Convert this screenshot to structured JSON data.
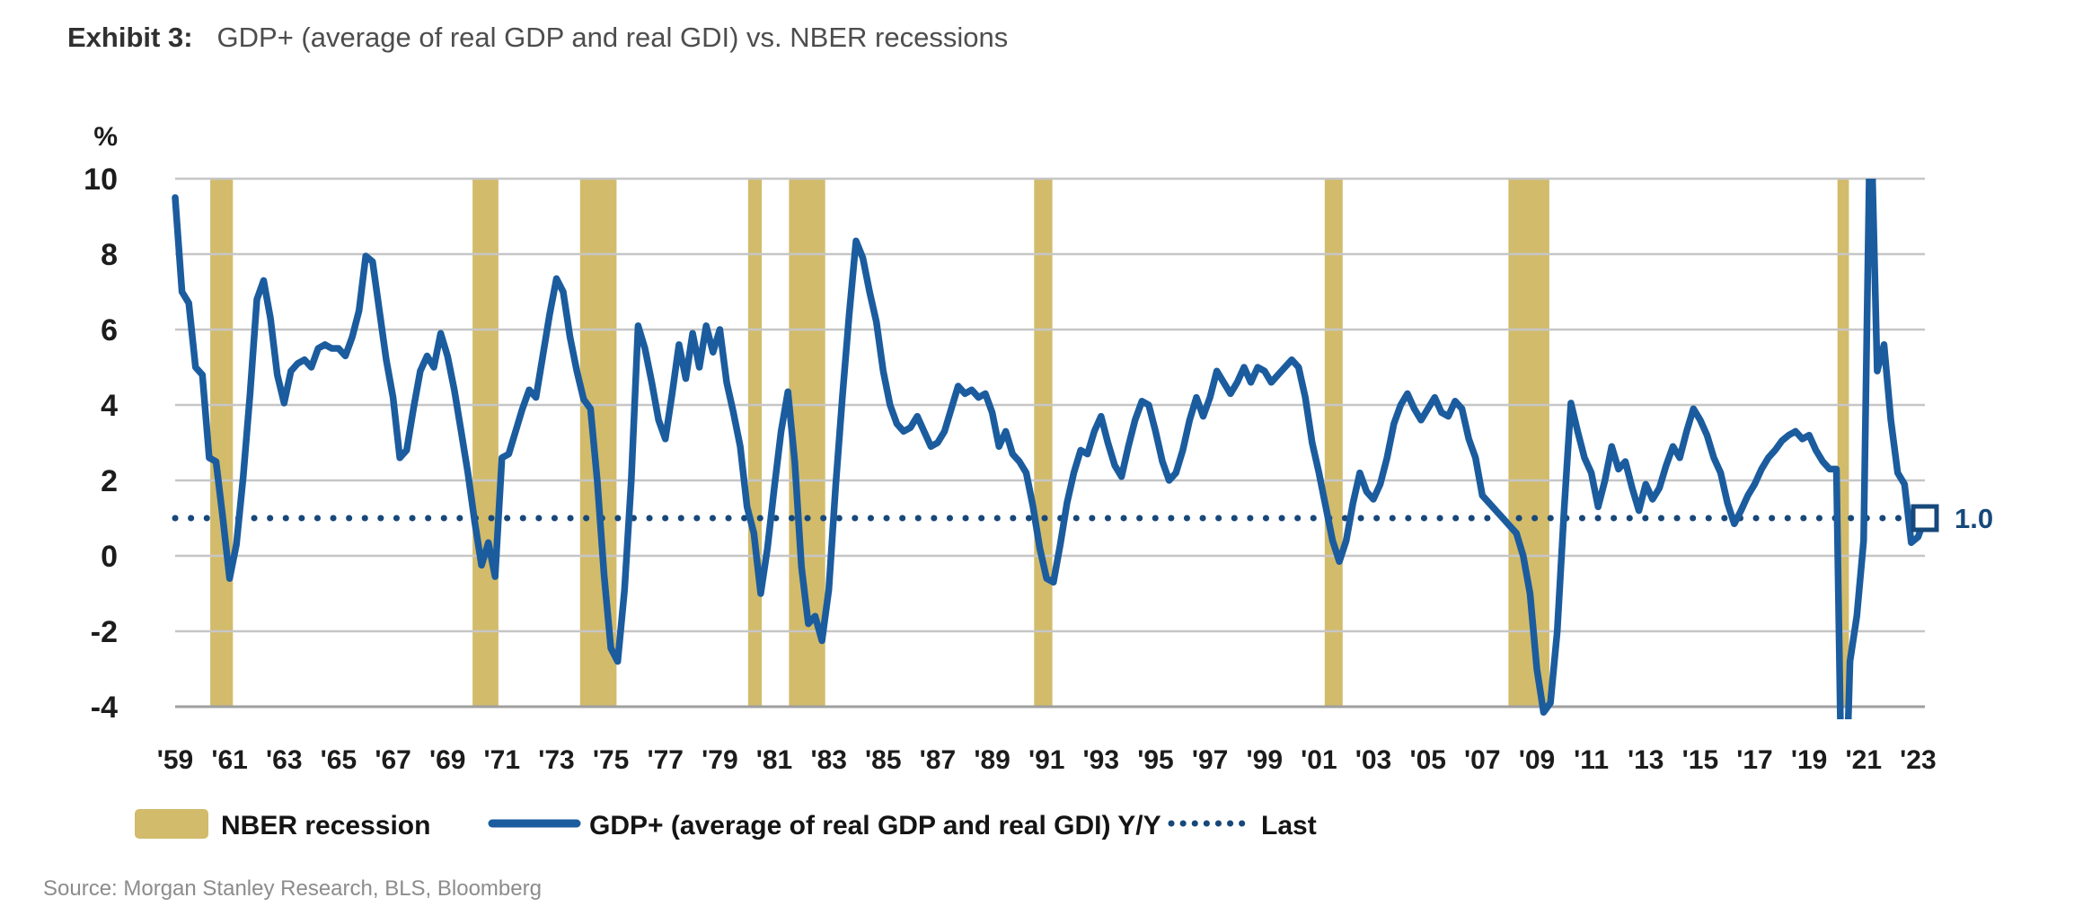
{
  "header": {
    "exhibit_label": "Exhibit 3:",
    "title": "GDP+ (average of real GDP and real GDI) vs. NBER recessions"
  },
  "source": "Source: Morgan Stanley Research, BLS, Bloomberg",
  "chart_data": {
    "type": "line",
    "title": "GDP+ (average of real GDP and real GDI) vs. NBER recessions",
    "unit_label": "%",
    "ylim": [
      -4,
      10
    ],
    "y_ticks": [
      10,
      8,
      6,
      4,
      2,
      0,
      -2,
      -4
    ],
    "x_range": [
      1959,
      2023.25
    ],
    "x_tick_start": 1959,
    "x_tick_step": 2,
    "x_tick_labels": [
      "'59",
      "'61",
      "'63",
      "'65",
      "'67",
      "'69",
      "'71",
      "'73",
      "'75",
      "'77",
      "'79",
      "'81",
      "'83",
      "'85",
      "'87",
      "'89",
      "'91",
      "'93",
      "'95",
      "'97",
      "'99",
      "'01",
      "'03",
      "'05",
      "'07",
      "'09",
      "'11",
      "'13",
      "'15",
      "'17",
      "'19",
      "'21",
      "'23"
    ],
    "grid": true,
    "legend_position": "bottom",
    "legend": [
      "NBER recession",
      "GDP+ (average of real GDP and real GDI) Y/Y",
      "Last"
    ],
    "last_value": 1.0,
    "last_label": "1.0",
    "colors": {
      "recession": "#d2bb6b",
      "line": "#1b5c9e",
      "dotted": "#17487a",
      "grid": "#c6c6c6",
      "axis_line": "#9f9f9f"
    },
    "recessions": [
      [
        1960.29,
        1961.12
      ],
      [
        1969.92,
        1970.87
      ],
      [
        1973.87,
        1975.21
      ],
      [
        1980.04,
        1980.54
      ],
      [
        1981.54,
        1982.87
      ],
      [
        1990.54,
        1991.21
      ],
      [
        2001.21,
        2001.87
      ],
      [
        2007.96,
        2009.46
      ],
      [
        2020.04,
        2020.46
      ]
    ],
    "series": {
      "name": "GDP+ (average of real GDP and real GDI) Y/Y",
      "points": [
        [
          1959.0,
          9.5
        ],
        [
          1959.25,
          7.0
        ],
        [
          1959.5,
          6.7
        ],
        [
          1959.75,
          5.0
        ],
        [
          1960.0,
          4.8
        ],
        [
          1960.25,
          2.6
        ],
        [
          1960.5,
          2.5
        ],
        [
          1960.75,
          1.0
        ],
        [
          1961.0,
          -0.6
        ],
        [
          1961.25,
          0.3
        ],
        [
          1961.5,
          2.1
        ],
        [
          1961.75,
          4.3
        ],
        [
          1962.0,
          6.8
        ],
        [
          1962.25,
          7.3
        ],
        [
          1962.5,
          6.3
        ],
        [
          1962.75,
          4.8
        ],
        [
          1963.0,
          4.05
        ],
        [
          1963.25,
          4.9
        ],
        [
          1963.5,
          5.1
        ],
        [
          1963.75,
          5.2
        ],
        [
          1964.0,
          5.0
        ],
        [
          1964.25,
          5.5
        ],
        [
          1964.5,
          5.6
        ],
        [
          1964.75,
          5.5
        ],
        [
          1965.0,
          5.5
        ],
        [
          1965.25,
          5.3
        ],
        [
          1965.5,
          5.8
        ],
        [
          1965.75,
          6.5
        ],
        [
          1966.0,
          7.95
        ],
        [
          1966.25,
          7.8
        ],
        [
          1966.5,
          6.5
        ],
        [
          1966.75,
          5.2
        ],
        [
          1967.0,
          4.2
        ],
        [
          1967.25,
          2.6
        ],
        [
          1967.5,
          2.8
        ],
        [
          1967.75,
          3.9
        ],
        [
          1968.0,
          4.9
        ],
        [
          1968.25,
          5.3
        ],
        [
          1968.5,
          5.0
        ],
        [
          1968.75,
          5.9
        ],
        [
          1969.0,
          5.3
        ],
        [
          1969.25,
          4.4
        ],
        [
          1969.5,
          3.3
        ],
        [
          1969.75,
          2.2
        ],
        [
          1970.0,
          0.9
        ],
        [
          1970.25,
          -0.25
        ],
        [
          1970.5,
          0.35
        ],
        [
          1970.75,
          -0.55
        ],
        [
          1971.0,
          2.6
        ],
        [
          1971.25,
          2.7
        ],
        [
          1971.5,
          3.3
        ],
        [
          1971.75,
          3.9
        ],
        [
          1972.0,
          4.4
        ],
        [
          1972.25,
          4.2
        ],
        [
          1972.5,
          5.3
        ],
        [
          1972.75,
          6.4
        ],
        [
          1973.0,
          7.35
        ],
        [
          1973.25,
          7.0
        ],
        [
          1973.5,
          5.8
        ],
        [
          1973.75,
          4.9
        ],
        [
          1974.0,
          4.15
        ],
        [
          1974.25,
          3.9
        ],
        [
          1974.5,
          2.0
        ],
        [
          1974.75,
          -0.5
        ],
        [
          1975.0,
          -2.45
        ],
        [
          1975.25,
          -2.8
        ],
        [
          1975.5,
          -0.9
        ],
        [
          1975.75,
          2.0
        ],
        [
          1976.0,
          6.1
        ],
        [
          1976.25,
          5.5
        ],
        [
          1976.5,
          4.6
        ],
        [
          1976.75,
          3.6
        ],
        [
          1977.0,
          3.1
        ],
        [
          1977.25,
          4.3
        ],
        [
          1977.5,
          5.6
        ],
        [
          1977.75,
          4.7
        ],
        [
          1978.0,
          5.9
        ],
        [
          1978.25,
          5.0
        ],
        [
          1978.5,
          6.1
        ],
        [
          1978.75,
          5.4
        ],
        [
          1979.0,
          6.0
        ],
        [
          1979.25,
          4.6
        ],
        [
          1979.5,
          3.8
        ],
        [
          1979.75,
          2.9
        ],
        [
          1980.0,
          1.3
        ],
        [
          1980.25,
          0.6
        ],
        [
          1980.5,
          -1.0
        ],
        [
          1980.75,
          0.2
        ],
        [
          1981.0,
          1.8
        ],
        [
          1981.25,
          3.3
        ],
        [
          1981.5,
          4.35
        ],
        [
          1981.75,
          2.5
        ],
        [
          1982.0,
          -0.3
        ],
        [
          1982.25,
          -1.8
        ],
        [
          1982.5,
          -1.6
        ],
        [
          1982.75,
          -2.25
        ],
        [
          1983.0,
          -0.9
        ],
        [
          1983.25,
          1.8
        ],
        [
          1983.5,
          4.2
        ],
        [
          1983.75,
          6.4
        ],
        [
          1984.0,
          8.35
        ],
        [
          1984.25,
          7.9
        ],
        [
          1984.5,
          7.0
        ],
        [
          1984.75,
          6.2
        ],
        [
          1985.0,
          4.9
        ],
        [
          1985.25,
          4.0
        ],
        [
          1985.5,
          3.5
        ],
        [
          1985.75,
          3.3
        ],
        [
          1986.0,
          3.4
        ],
        [
          1986.25,
          3.7
        ],
        [
          1986.5,
          3.3
        ],
        [
          1986.75,
          2.9
        ],
        [
          1987.0,
          3.0
        ],
        [
          1987.25,
          3.3
        ],
        [
          1987.5,
          3.9
        ],
        [
          1987.75,
          4.5
        ],
        [
          1988.0,
          4.3
        ],
        [
          1988.25,
          4.4
        ],
        [
          1988.5,
          4.2
        ],
        [
          1988.75,
          4.3
        ],
        [
          1989.0,
          3.8
        ],
        [
          1989.25,
          2.9
        ],
        [
          1989.5,
          3.3
        ],
        [
          1989.75,
          2.7
        ],
        [
          1990.0,
          2.5
        ],
        [
          1990.25,
          2.2
        ],
        [
          1990.5,
          1.3
        ],
        [
          1990.75,
          0.2
        ],
        [
          1991.0,
          -0.6
        ],
        [
          1991.25,
          -0.7
        ],
        [
          1991.5,
          0.3
        ],
        [
          1991.75,
          1.4
        ],
        [
          1992.0,
          2.2
        ],
        [
          1992.25,
          2.8
        ],
        [
          1992.5,
          2.7
        ],
        [
          1992.75,
          3.3
        ],
        [
          1993.0,
          3.7
        ],
        [
          1993.25,
          3.0
        ],
        [
          1993.5,
          2.4
        ],
        [
          1993.75,
          2.1
        ],
        [
          1994.0,
          2.9
        ],
        [
          1994.25,
          3.6
        ],
        [
          1994.5,
          4.1
        ],
        [
          1994.75,
          4.0
        ],
        [
          1995.0,
          3.3
        ],
        [
          1995.25,
          2.5
        ],
        [
          1995.5,
          2.0
        ],
        [
          1995.75,
          2.2
        ],
        [
          1996.0,
          2.8
        ],
        [
          1996.25,
          3.6
        ],
        [
          1996.5,
          4.2
        ],
        [
          1996.75,
          3.7
        ],
        [
          1997.0,
          4.2
        ],
        [
          1997.25,
          4.9
        ],
        [
          1997.5,
          4.6
        ],
        [
          1997.75,
          4.3
        ],
        [
          1998.0,
          4.6
        ],
        [
          1998.25,
          5.0
        ],
        [
          1998.5,
          4.6
        ],
        [
          1998.75,
          5.0
        ],
        [
          1999.0,
          4.9
        ],
        [
          1999.25,
          4.6
        ],
        [
          1999.5,
          4.8
        ],
        [
          1999.75,
          5.0
        ],
        [
          2000.0,
          5.2
        ],
        [
          2000.25,
          5.0
        ],
        [
          2000.5,
          4.2
        ],
        [
          2000.75,
          3.0
        ],
        [
          2001.0,
          2.2
        ],
        [
          2001.25,
          1.3
        ],
        [
          2001.5,
          0.4
        ],
        [
          2001.75,
          -0.15
        ],
        [
          2002.0,
          0.4
        ],
        [
          2002.25,
          1.4
        ],
        [
          2002.5,
          2.2
        ],
        [
          2002.75,
          1.7
        ],
        [
          2003.0,
          1.5
        ],
        [
          2003.25,
          1.9
        ],
        [
          2003.5,
          2.6
        ],
        [
          2003.75,
          3.5
        ],
        [
          2004.0,
          4.0
        ],
        [
          2004.25,
          4.3
        ],
        [
          2004.5,
          3.9
        ],
        [
          2004.75,
          3.6
        ],
        [
          2005.0,
          3.9
        ],
        [
          2005.25,
          4.2
        ],
        [
          2005.5,
          3.8
        ],
        [
          2005.75,
          3.7
        ],
        [
          2006.0,
          4.1
        ],
        [
          2006.25,
          3.9
        ],
        [
          2006.5,
          3.1
        ],
        [
          2006.75,
          2.6
        ],
        [
          2007.0,
          1.6
        ],
        [
          2007.25,
          1.4
        ],
        [
          2007.5,
          1.2
        ],
        [
          2007.75,
          1.0
        ],
        [
          2008.0,
          0.8
        ],
        [
          2008.25,
          0.6
        ],
        [
          2008.5,
          0.0
        ],
        [
          2008.75,
          -1.0
        ],
        [
          2009.0,
          -3.0
        ],
        [
          2009.25,
          -4.15
        ],
        [
          2009.5,
          -3.9
        ],
        [
          2009.75,
          -2.0
        ],
        [
          2010.0,
          1.2
        ],
        [
          2010.25,
          4.05
        ],
        [
          2010.5,
          3.3
        ],
        [
          2010.75,
          2.6
        ],
        [
          2011.0,
          2.2
        ],
        [
          2011.25,
          1.3
        ],
        [
          2011.5,
          2.0
        ],
        [
          2011.75,
          2.9
        ],
        [
          2012.0,
          2.3
        ],
        [
          2012.25,
          2.5
        ],
        [
          2012.5,
          1.8
        ],
        [
          2012.75,
          1.2
        ],
        [
          2013.0,
          1.9
        ],
        [
          2013.25,
          1.5
        ],
        [
          2013.5,
          1.8
        ],
        [
          2013.75,
          2.4
        ],
        [
          2014.0,
          2.9
        ],
        [
          2014.25,
          2.6
        ],
        [
          2014.5,
          3.3
        ],
        [
          2014.75,
          3.9
        ],
        [
          2015.0,
          3.6
        ],
        [
          2015.25,
          3.2
        ],
        [
          2015.5,
          2.6
        ],
        [
          2015.75,
          2.2
        ],
        [
          2016.0,
          1.4
        ],
        [
          2016.25,
          0.85
        ],
        [
          2016.5,
          1.2
        ],
        [
          2016.75,
          1.6
        ],
        [
          2017.0,
          1.9
        ],
        [
          2017.25,
          2.3
        ],
        [
          2017.5,
          2.6
        ],
        [
          2017.75,
          2.8
        ],
        [
          2018.0,
          3.05
        ],
        [
          2018.25,
          3.2
        ],
        [
          2018.5,
          3.3
        ],
        [
          2018.75,
          3.1
        ],
        [
          2019.0,
          3.2
        ],
        [
          2019.25,
          2.8
        ],
        [
          2019.5,
          2.5
        ],
        [
          2019.75,
          2.3
        ],
        [
          2020.0,
          2.3
        ],
        [
          2020.25,
          -9.0
        ],
        [
          2020.5,
          -2.8
        ],
        [
          2020.75,
          -1.6
        ],
        [
          2021.0,
          0.4
        ],
        [
          2021.25,
          12.2
        ],
        [
          2021.5,
          4.9
        ],
        [
          2021.75,
          5.6
        ],
        [
          2022.0,
          3.6
        ],
        [
          2022.25,
          2.2
        ],
        [
          2022.5,
          1.9
        ],
        [
          2022.75,
          0.35
        ],
        [
          2023.0,
          0.5
        ],
        [
          2023.25,
          1.0
        ]
      ]
    }
  }
}
